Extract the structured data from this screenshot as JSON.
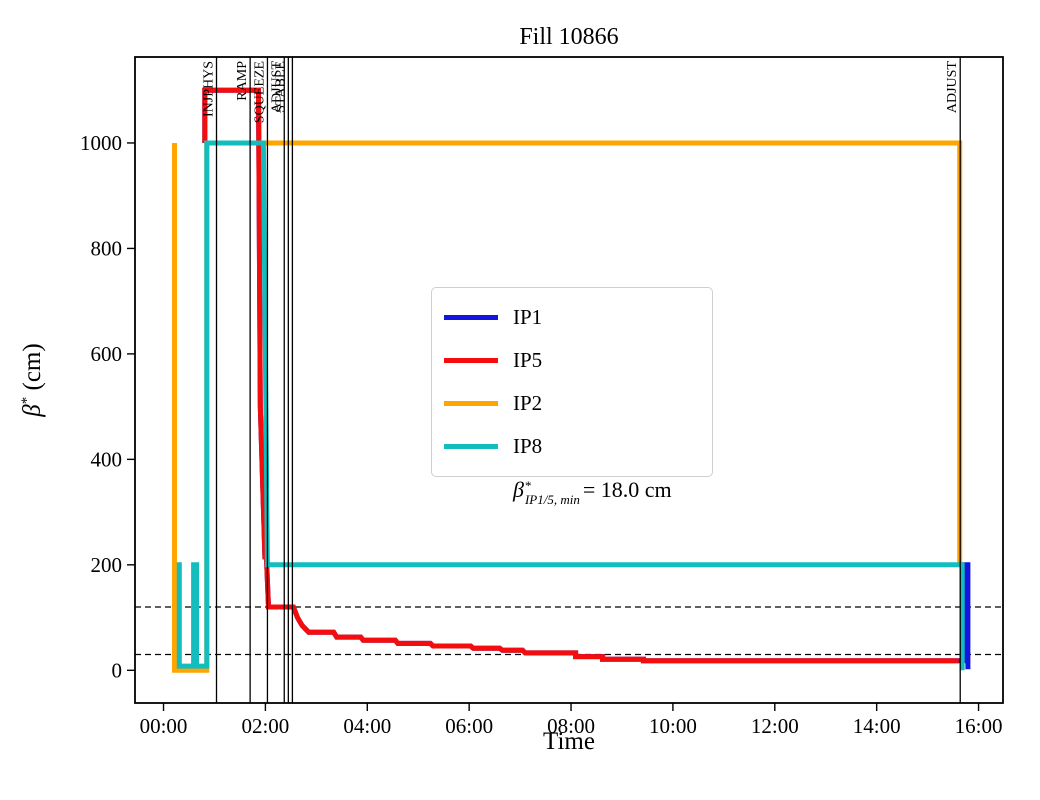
{
  "figure": {
    "title": "Fill 10866",
    "xlabel": "Time",
    "ylabel": {
      "beta": "β",
      "sup": "*",
      "unit": " (cm)"
    }
  },
  "legend": {
    "entries": [
      {
        "label": "IP1",
        "color": "#1414e0"
      },
      {
        "label": "IP5",
        "color": "#f50d0d"
      },
      {
        "label": "IP2",
        "color": "#ffa500"
      },
      {
        "label": "IP8",
        "color": "#13bdbd"
      }
    ],
    "annotation": {
      "beta": "β",
      "sup": "*",
      "sub": "IP1/5, min",
      "value": "= 18.0 cm"
    }
  },
  "chart_data": {
    "type": "line",
    "title": "Fill 10866",
    "xlabel": "Time",
    "ylabel": "beta* (cm)",
    "x_unit": "hours since 00:00",
    "y_unit": "cm",
    "xlim": [
      -0.56,
      16.48
    ],
    "ylim": [
      -62,
      1163
    ],
    "grid": false,
    "legend_position": "center",
    "x_ticks": [
      {
        "t": 0,
        "label": "00:00"
      },
      {
        "t": 2,
        "label": "02:00"
      },
      {
        "t": 4,
        "label": "04:00"
      },
      {
        "t": 6,
        "label": "06:00"
      },
      {
        "t": 8,
        "label": "08:00"
      },
      {
        "t": 10,
        "label": "10:00"
      },
      {
        "t": 12,
        "label": "12:00"
      },
      {
        "t": 14,
        "label": "14:00"
      },
      {
        "t": 16,
        "label": "16:00"
      }
    ],
    "y_ticks": [
      {
        "v": 0,
        "label": "0"
      },
      {
        "v": 200,
        "label": "200"
      },
      {
        "v": 400,
        "label": "400"
      },
      {
        "v": 600,
        "label": "600"
      },
      {
        "v": 800,
        "label": "800"
      },
      {
        "v": 1000,
        "label": "1000"
      }
    ],
    "dashed_hlines_cm": [
      120,
      30
    ],
    "beta_min_annotation_cm": 18.0,
    "events": [
      {
        "t": 1.04,
        "label": "INJPHYS"
      },
      {
        "t": 1.7,
        "label": "RAMP"
      },
      {
        "t": 2.04,
        "label": "SQUEEZE"
      },
      {
        "t": 2.37,
        "label": "ADJUST"
      },
      {
        "t": 2.45,
        "label": "STABLE"
      },
      {
        "t": 2.53,
        "label": ""
      },
      {
        "t": 15.64,
        "label": "ADJUST"
      }
    ],
    "series": [
      {
        "name": "IP1",
        "color": "#1414e0",
        "linewidth": 5,
        "points": [
          [
            0.81,
            1000
          ],
          [
            0.81,
            1100
          ],
          [
            1.865,
            1100
          ],
          [
            1.9,
            500
          ],
          [
            1.99,
            215
          ],
          [
            2.02,
            215
          ],
          [
            2.06,
            120
          ],
          [
            2.55,
            120
          ],
          [
            2.63,
            100
          ],
          [
            2.72,
            85
          ],
          [
            2.85,
            72
          ],
          [
            3.34,
            72
          ],
          [
            3.4,
            63
          ],
          [
            3.87,
            63
          ],
          [
            3.92,
            57
          ],
          [
            4.55,
            57
          ],
          [
            4.6,
            51
          ],
          [
            5.24,
            51
          ],
          [
            5.29,
            46
          ],
          [
            6.03,
            46
          ],
          [
            6.08,
            42
          ],
          [
            6.6,
            42
          ],
          [
            6.65,
            38
          ],
          [
            7.05,
            38
          ],
          [
            7.1,
            33
          ],
          [
            8.09,
            33
          ],
          [
            8.09,
            26
          ],
          [
            8.62,
            26
          ],
          [
            8.62,
            21
          ],
          [
            9.42,
            21
          ],
          [
            9.42,
            18
          ],
          [
            15.72,
            18
          ],
          [
            15.72,
            200
          ],
          [
            15.79,
            200
          ],
          [
            15.79,
            2
          ]
        ]
      },
      {
        "name": "IP5",
        "color": "#f50d0d",
        "linewidth": 5,
        "points": [
          [
            0.81,
            1000
          ],
          [
            0.81,
            1100
          ],
          [
            1.865,
            1100
          ],
          [
            1.9,
            500
          ],
          [
            1.99,
            215
          ],
          [
            2.02,
            215
          ],
          [
            2.06,
            120
          ],
          [
            2.55,
            120
          ],
          [
            2.63,
            100
          ],
          [
            2.72,
            85
          ],
          [
            2.85,
            72
          ],
          [
            3.34,
            72
          ],
          [
            3.4,
            63
          ],
          [
            3.87,
            63
          ],
          [
            3.92,
            57
          ],
          [
            4.55,
            57
          ],
          [
            4.6,
            51
          ],
          [
            5.24,
            51
          ],
          [
            5.29,
            46
          ],
          [
            6.03,
            46
          ],
          [
            6.08,
            42
          ],
          [
            6.6,
            42
          ],
          [
            6.65,
            38
          ],
          [
            7.05,
            38
          ],
          [
            7.1,
            33
          ],
          [
            8.09,
            33
          ],
          [
            8.09,
            26
          ],
          [
            8.62,
            26
          ],
          [
            8.62,
            21
          ],
          [
            9.42,
            21
          ],
          [
            9.42,
            18
          ],
          [
            15.61,
            18
          ]
        ]
      },
      {
        "name": "IP2",
        "color": "#ffa500",
        "linewidth": 5,
        "points": [
          [
            0.215,
            1000
          ],
          [
            0.215,
            0
          ],
          [
            0.85,
            0
          ],
          [
            0.85,
            1000
          ],
          [
            15.63,
            1000
          ],
          [
            15.63,
            198
          ]
        ]
      },
      {
        "name": "IP8",
        "color": "#13bdbd",
        "linewidth": 5,
        "points": [
          [
            0.26,
            200
          ],
          [
            0.31,
            200
          ],
          [
            0.31,
            8
          ],
          [
            0.59,
            8
          ],
          [
            0.59,
            200
          ],
          [
            0.65,
            200
          ],
          [
            0.65,
            8
          ],
          [
            0.85,
            8
          ],
          [
            0.85,
            1000
          ],
          [
            1.96,
            1000
          ],
          [
            2.04,
            200
          ],
          [
            15.68,
            200
          ],
          [
            15.68,
            0
          ]
        ]
      }
    ]
  }
}
